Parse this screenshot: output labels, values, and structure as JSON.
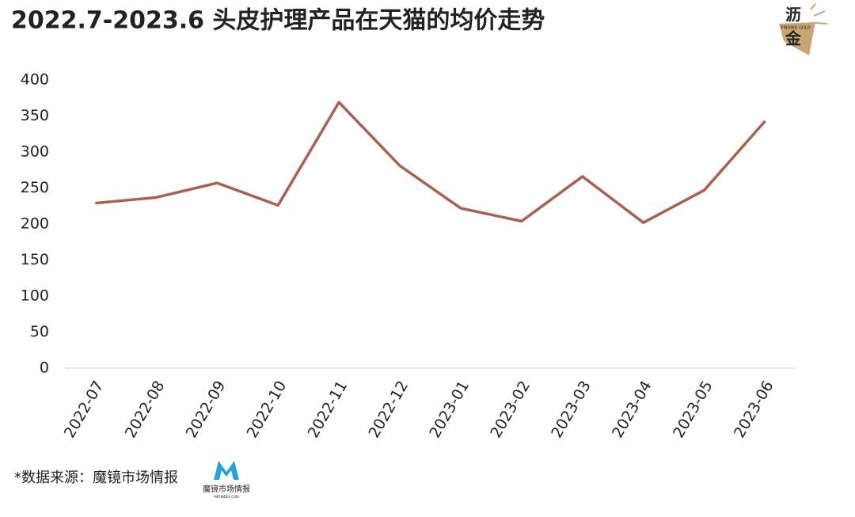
{
  "chart_data": {
    "type": "line",
    "title": "2022.7-2023.6 头皮护理产品在天猫的均价走势",
    "categories": [
      "2022-07",
      "2022-08",
      "2022-09",
      "2022-10",
      "2022-11",
      "2022-12",
      "2023-01",
      "2023-02",
      "2023-03",
      "2023-04",
      "2023-05",
      "2023-06"
    ],
    "values": [
      229,
      237,
      257,
      226,
      369,
      281,
      222,
      204,
      266,
      202,
      247,
      343
    ],
    "color": "#a8614f",
    "ylim": [
      0,
      400
    ],
    "yticks": [
      0,
      50,
      100,
      150,
      200,
      250,
      300,
      350,
      400
    ],
    "grid": false
  },
  "source": "*数据来源：魔镜市场情报",
  "source_logo": {
    "name": "魔镜市场情报",
    "url": "MKTINDEX.COM"
  },
  "brand_logo": {
    "name_line1": "沥",
    "name_line2": "金",
    "tagline": "FINDING GOLD"
  }
}
